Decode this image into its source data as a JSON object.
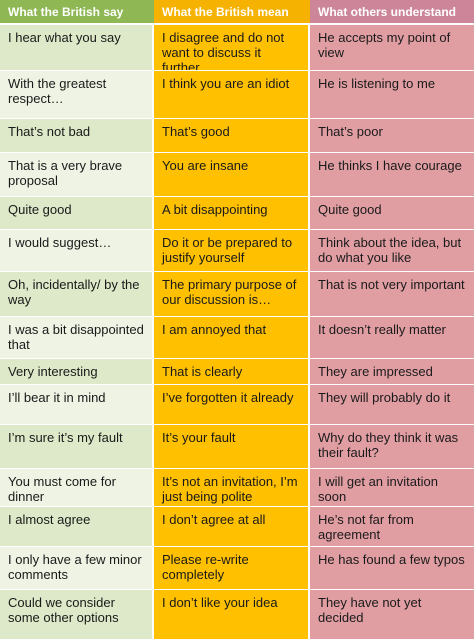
{
  "headers": [
    "What the British say",
    "What the British mean",
    "What others understand"
  ],
  "rows": [
    [
      "I hear what you say",
      "I disagree and do not want to discuss it further",
      "He accepts my point of view"
    ],
    [
      "With the greatest respect…",
      "I think you are an idiot",
      "He is listening to me"
    ],
    [
      "That’s not bad",
      "That’s good",
      "That’s poor"
    ],
    [
      "That is a very brave proposal",
      "You are insane",
      "He thinks I have courage"
    ],
    [
      "Quite good",
      "A bit disappointing",
      "Quite good"
    ],
    [
      "I would suggest…",
      "Do it or be prepared to justify yourself",
      "Think about the idea, but do what you like"
    ],
    [
      "Oh, incidentally/ by the way",
      "The primary purpose of our discussion is…",
      "That is not very important"
    ],
    [
      "I was a bit disappointed that",
      "I am annoyed that",
      "It doesn’t really matter"
    ],
    [
      "Very interesting",
      "That is clearly nonsense",
      "They are impressed"
    ],
    [
      "I’ll bear it in mind",
      "I’ve forgotten it already",
      "They will probably do it"
    ],
    [
      "I’m sure it’s my fault",
      "It’s your fault",
      "Why do they think it was their fault?"
    ],
    [
      "You must come for dinner",
      "It’s not an invitation, I’m just being polite",
      "I will get an invitation soon"
    ],
    [
      "I almost agree",
      "I don’t agree at all",
      "He’s not far from agreement"
    ],
    [
      "I only have a few minor comments",
      "Please re-write completely",
      "He has found a few typos"
    ],
    [
      "Could we consider some other options",
      "I don’t like your idea",
      "They have not yet decided"
    ]
  ],
  "colors": {
    "header_col1": "#8fb754",
    "header_col2": "#f5b200",
    "header_col3": "#cc8599",
    "col1_odd": "#dde9c8",
    "col1_even": "#eef3e4",
    "col2": "#ffc000",
    "col3": "#e09ea3"
  }
}
